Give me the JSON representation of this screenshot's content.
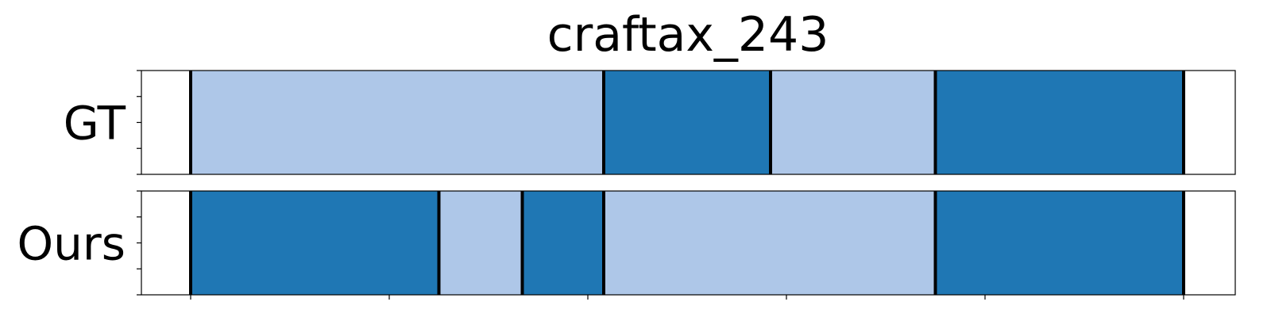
{
  "chart_data": {
    "type": "segmentation-timeline",
    "title": "craftax_243",
    "colors": {
      "light": "#aec7e8",
      "dark": "#1f77b4",
      "boundary": "#000000",
      "frame": "#000000"
    },
    "x_range": [
      0,
      5.5
    ],
    "ticks": [
      0,
      1,
      2,
      3,
      4,
      5
    ],
    "rows": [
      {
        "label": "GT",
        "segments": [
          {
            "start": 0.0,
            "end": 2.08,
            "class": "light"
          },
          {
            "start": 2.08,
            "end": 2.92,
            "class": "dark"
          },
          {
            "start": 2.92,
            "end": 3.75,
            "class": "light"
          },
          {
            "start": 3.75,
            "end": 5.0,
            "class": "dark"
          }
        ]
      },
      {
        "label": "Ours",
        "segments": [
          {
            "start": 0.0,
            "end": 1.25,
            "class": "dark"
          },
          {
            "start": 1.25,
            "end": 1.67,
            "class": "light"
          },
          {
            "start": 1.67,
            "end": 2.08,
            "class": "dark"
          },
          {
            "start": 2.08,
            "end": 3.75,
            "class": "light"
          },
          {
            "start": 3.75,
            "end": 5.0,
            "class": "dark"
          }
        ]
      }
    ]
  }
}
